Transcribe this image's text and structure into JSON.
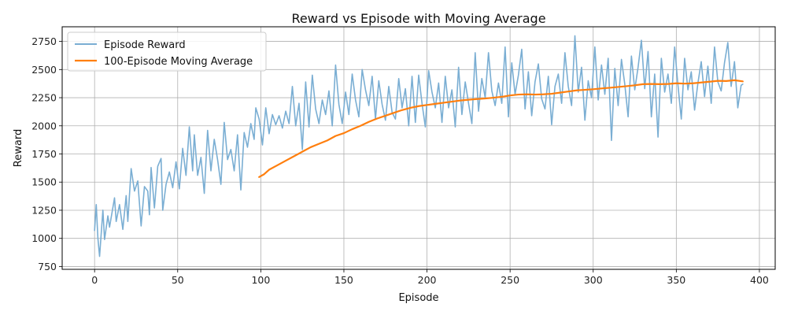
{
  "chart_data": {
    "type": "line",
    "title": "Reward vs Episode with Moving Average",
    "xlabel": "Episode",
    "ylabel": "Reward",
    "xlim": [
      -19.5,
      409.5
    ],
    "ylim": [
      725,
      2880
    ],
    "xticks": [
      0,
      50,
      100,
      150,
      200,
      250,
      300,
      350,
      400
    ],
    "yticks": [
      750,
      1000,
      1250,
      1500,
      1750,
      2000,
      2250,
      2500,
      2750
    ],
    "x_tick_labels": [
      "0",
      "50",
      "100",
      "150",
      "200",
      "250",
      "300",
      "350",
      "400"
    ],
    "y_tick_labels": [
      "750",
      "1000",
      "1250",
      "1500",
      "1750",
      "2000",
      "2250",
      "2500",
      "2750"
    ],
    "grid": true,
    "legend": "top-left",
    "series": [
      {
        "name": "Episode Reward",
        "color": "#7aaed3",
        "anchors": [
          [
            0,
            1070
          ],
          [
            1,
            1300
          ],
          [
            2,
            1000
          ],
          [
            3,
            840
          ],
          [
            5,
            1250
          ],
          [
            6,
            990
          ],
          [
            8,
            1200
          ],
          [
            9,
            1100
          ],
          [
            12,
            1360
          ],
          [
            13,
            1150
          ],
          [
            15,
            1300
          ],
          [
            17,
            1080
          ],
          [
            19,
            1380
          ],
          [
            20,
            1150
          ],
          [
            22,
            1620
          ],
          [
            24,
            1420
          ],
          [
            26,
            1510
          ],
          [
            28,
            1110
          ],
          [
            30,
            1460
          ],
          [
            32,
            1420
          ],
          [
            33,
            1210
          ],
          [
            34,
            1630
          ],
          [
            36,
            1270
          ],
          [
            38,
            1640
          ],
          [
            40,
            1710
          ],
          [
            41,
            1250
          ],
          [
            43,
            1480
          ],
          [
            45,
            1590
          ],
          [
            47,
            1450
          ],
          [
            49,
            1680
          ],
          [
            51,
            1440
          ],
          [
            53,
            1800
          ],
          [
            55,
            1560
          ],
          [
            57,
            1990
          ],
          [
            59,
            1600
          ],
          [
            60,
            1920
          ],
          [
            62,
            1560
          ],
          [
            64,
            1720
          ],
          [
            66,
            1400
          ],
          [
            68,
            1960
          ],
          [
            70,
            1600
          ],
          [
            72,
            1880
          ],
          [
            74,
            1700
          ],
          [
            76,
            1480
          ],
          [
            78,
            2030
          ],
          [
            80,
            1700
          ],
          [
            82,
            1790
          ],
          [
            84,
            1600
          ],
          [
            86,
            1920
          ],
          [
            88,
            1430
          ],
          [
            90,
            1940
          ],
          [
            92,
            1810
          ],
          [
            94,
            2020
          ],
          [
            96,
            1880
          ],
          [
            97,
            2160
          ],
          [
            99,
            2060
          ],
          [
            101,
            1830
          ],
          [
            103,
            2160
          ],
          [
            105,
            1930
          ],
          [
            107,
            2100
          ],
          [
            109,
            2010
          ],
          [
            111,
            2090
          ],
          [
            113,
            1980
          ],
          [
            115,
            2130
          ],
          [
            117,
            2020
          ],
          [
            119,
            2350
          ],
          [
            121,
            2000
          ],
          [
            123,
            2200
          ],
          [
            125,
            1790
          ],
          [
            127,
            2390
          ],
          [
            129,
            1990
          ],
          [
            131,
            2450
          ],
          [
            133,
            2150
          ],
          [
            135,
            2020
          ],
          [
            137,
            2230
          ],
          [
            139,
            2100
          ],
          [
            141,
            2310
          ],
          [
            143,
            2000
          ],
          [
            145,
            2540
          ],
          [
            147,
            2190
          ],
          [
            149,
            2020
          ],
          [
            151,
            2300
          ],
          [
            153,
            2100
          ],
          [
            155,
            2460
          ],
          [
            157,
            2230
          ],
          [
            159,
            2080
          ],
          [
            161,
            2500
          ],
          [
            163,
            2320
          ],
          [
            165,
            2180
          ],
          [
            167,
            2440
          ],
          [
            169,
            2060
          ],
          [
            171,
            2400
          ],
          [
            173,
            2190
          ],
          [
            175,
            2050
          ],
          [
            177,
            2350
          ],
          [
            179,
            2120
          ],
          [
            181,
            2060
          ],
          [
            183,
            2420
          ],
          [
            185,
            2160
          ],
          [
            187,
            2330
          ],
          [
            189,
            2000
          ],
          [
            191,
            2440
          ],
          [
            193,
            2030
          ],
          [
            195,
            2450
          ],
          [
            197,
            2200
          ],
          [
            199,
            1990
          ],
          [
            201,
            2490
          ],
          [
            203,
            2300
          ],
          [
            205,
            2160
          ],
          [
            207,
            2380
          ],
          [
            209,
            2030
          ],
          [
            211,
            2440
          ],
          [
            213,
            2160
          ],
          [
            215,
            2320
          ],
          [
            217,
            1990
          ],
          [
            219,
            2520
          ],
          [
            221,
            2100
          ],
          [
            223,
            2390
          ],
          [
            225,
            2200
          ],
          [
            227,
            2020
          ],
          [
            229,
            2650
          ],
          [
            231,
            2130
          ],
          [
            233,
            2420
          ],
          [
            235,
            2250
          ],
          [
            237,
            2650
          ],
          [
            239,
            2310
          ],
          [
            241,
            2180
          ],
          [
            243,
            2380
          ],
          [
            245,
            2200
          ],
          [
            247,
            2700
          ],
          [
            249,
            2080
          ],
          [
            251,
            2560
          ],
          [
            253,
            2280
          ],
          [
            255,
            2450
          ],
          [
            257,
            2680
          ],
          [
            259,
            2150
          ],
          [
            261,
            2480
          ],
          [
            263,
            2090
          ],
          [
            265,
            2390
          ],
          [
            267,
            2550
          ],
          [
            269,
            2240
          ],
          [
            271,
            2150
          ],
          [
            273,
            2440
          ],
          [
            275,
            2010
          ],
          [
            277,
            2350
          ],
          [
            279,
            2460
          ],
          [
            281,
            2200
          ],
          [
            283,
            2650
          ],
          [
            285,
            2350
          ],
          [
            287,
            2180
          ],
          [
            289,
            2800
          ],
          [
            291,
            2300
          ],
          [
            293,
            2520
          ],
          [
            295,
            2050
          ],
          [
            297,
            2400
          ],
          [
            299,
            2250
          ],
          [
            301,
            2700
          ],
          [
            303,
            2230
          ],
          [
            305,
            2540
          ],
          [
            307,
            2280
          ],
          [
            309,
            2600
          ],
          [
            311,
            1870
          ],
          [
            313,
            2510
          ],
          [
            315,
            2180
          ],
          [
            317,
            2590
          ],
          [
            319,
            2370
          ],
          [
            321,
            2080
          ],
          [
            323,
            2620
          ],
          [
            325,
            2320
          ],
          [
            327,
            2520
          ],
          [
            329,
            2760
          ],
          [
            331,
            2330
          ],
          [
            333,
            2660
          ],
          [
            335,
            2080
          ],
          [
            337,
            2460
          ],
          [
            339,
            1900
          ],
          [
            341,
            2600
          ],
          [
            343,
            2300
          ],
          [
            345,
            2460
          ],
          [
            347,
            2200
          ],
          [
            349,
            2700
          ],
          [
            351,
            2360
          ],
          [
            353,
            2060
          ],
          [
            355,
            2600
          ],
          [
            357,
            2320
          ],
          [
            359,
            2480
          ],
          [
            361,
            2140
          ],
          [
            363,
            2380
          ],
          [
            365,
            2570
          ],
          [
            367,
            2260
          ],
          [
            369,
            2530
          ],
          [
            371,
            2200
          ],
          [
            373,
            2700
          ],
          [
            375,
            2390
          ],
          [
            377,
            2310
          ],
          [
            379,
            2560
          ],
          [
            381,
            2740
          ],
          [
            383,
            2350
          ],
          [
            385,
            2570
          ],
          [
            387,
            2160
          ],
          [
            389,
            2360
          ],
          [
            390,
            2370
          ]
        ]
      },
      {
        "name": "100-Episode Moving Average",
        "color": "#ff7f0e",
        "anchors": [
          [
            99,
            1545
          ],
          [
            102,
            1570
          ],
          [
            105,
            1610
          ],
          [
            110,
            1650
          ],
          [
            115,
            1690
          ],
          [
            120,
            1730
          ],
          [
            125,
            1770
          ],
          [
            130,
            1810
          ],
          [
            135,
            1840
          ],
          [
            140,
            1870
          ],
          [
            145,
            1910
          ],
          [
            150,
            1935
          ],
          [
            155,
            1970
          ],
          [
            160,
            2000
          ],
          [
            165,
            2035
          ],
          [
            170,
            2065
          ],
          [
            175,
            2090
          ],
          [
            180,
            2115
          ],
          [
            185,
            2140
          ],
          [
            190,
            2160
          ],
          [
            195,
            2175
          ],
          [
            200,
            2185
          ],
          [
            205,
            2195
          ],
          [
            210,
            2205
          ],
          [
            215,
            2215
          ],
          [
            220,
            2225
          ],
          [
            225,
            2232
          ],
          [
            230,
            2238
          ],
          [
            235,
            2243
          ],
          [
            240,
            2250
          ],
          [
            245,
            2258
          ],
          [
            250,
            2270
          ],
          [
            255,
            2278
          ],
          [
            260,
            2280
          ],
          [
            265,
            2278
          ],
          [
            270,
            2280
          ],
          [
            275,
            2285
          ],
          [
            280,
            2295
          ],
          [
            285,
            2305
          ],
          [
            290,
            2315
          ],
          [
            295,
            2320
          ],
          [
            300,
            2325
          ],
          [
            305,
            2332
          ],
          [
            310,
            2338
          ],
          [
            315,
            2345
          ],
          [
            320,
            2352
          ],
          [
            325,
            2360
          ],
          [
            330,
            2370
          ],
          [
            335,
            2372
          ],
          [
            340,
            2370
          ],
          [
            345,
            2372
          ],
          [
            350,
            2378
          ],
          [
            355,
            2375
          ],
          [
            360,
            2378
          ],
          [
            365,
            2385
          ],
          [
            370,
            2392
          ],
          [
            375,
            2400
          ],
          [
            380,
            2398
          ],
          [
            385,
            2405
          ],
          [
            390,
            2395
          ]
        ]
      }
    ]
  }
}
